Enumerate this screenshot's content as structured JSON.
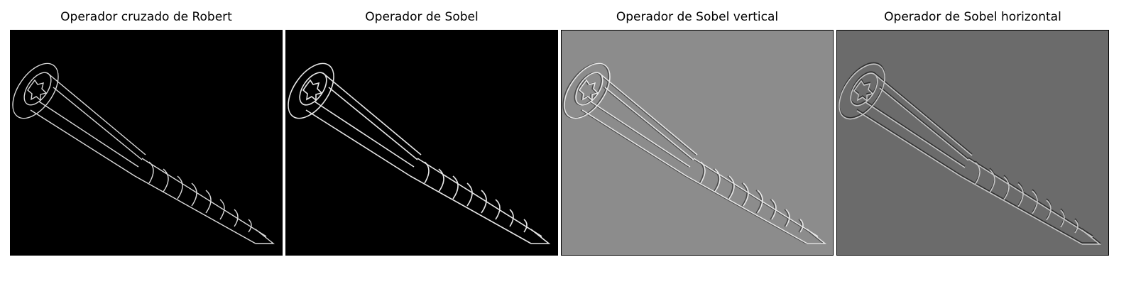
{
  "panels": [
    {
      "title": "Operador cruzado de Robert",
      "background": "#000000",
      "style": "edge-magnitude"
    },
    {
      "title": "Operador de Sobel",
      "background": "#000000",
      "style": "edge-magnitude"
    },
    {
      "title": "Operador de Sobel vertical",
      "background": "#8c8c8c",
      "style": "emboss-vertical"
    },
    {
      "title": "Operador de Sobel horizontal",
      "background": "#6b6b6b",
      "style": "emboss-horizontal"
    }
  ]
}
